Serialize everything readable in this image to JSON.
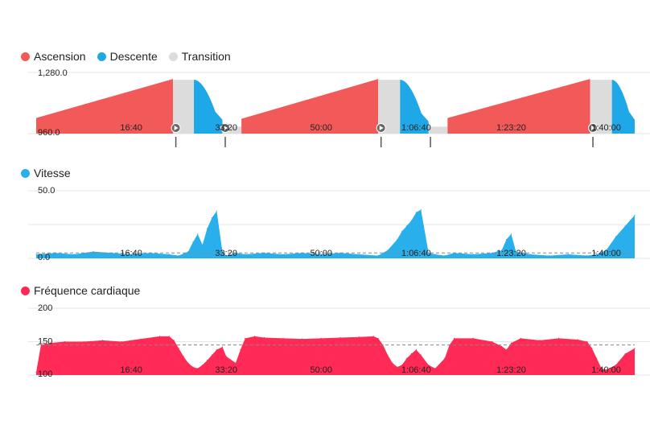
{
  "colors": {
    "ascent": "#f25a5a",
    "descent": "#1fa8e8",
    "transition": "#dcdcdc",
    "speed": "#29b0ec",
    "heart": "#ff2a55",
    "grid": "#e6e6e6",
    "reference": "#888888"
  },
  "chart_data": [
    {
      "type": "area",
      "legend": [
        {
          "name": "Ascension",
          "color": "#f25a5a"
        },
        {
          "name": "Descente",
          "color": "#1fa8e8"
        },
        {
          "name": "Transition",
          "color": "#dcdcdc"
        }
      ],
      "ylim": [
        960,
        1280
      ],
      "y_tick_labels": [
        "1,280.0",
        "960.0"
      ],
      "x_tick_labels": [
        "16:40",
        "33:20",
        "50:00",
        "1:06:40",
        "1:23:20",
        "1:40:00"
      ],
      "x_ticks_seconds": [
        1000,
        2000,
        3000,
        4000,
        5000,
        6000
      ],
      "xlim_seconds": [
        0,
        6300
      ],
      "segments": [
        {
          "kind": "ascent",
          "x": [
            0,
            1440
          ],
          "y": [
            1050,
            1275
          ]
        },
        {
          "kind": "transition",
          "x": [
            1440,
            1660
          ],
          "y": [
            1270,
            1270
          ]
        },
        {
          "kind": "descent",
          "x": [
            1660,
            1960
          ],
          "y": [
            1270,
            1040
          ]
        },
        {
          "kind": "transition",
          "x": [
            1960,
            2160
          ],
          "y": [
            1000,
            1000
          ]
        },
        {
          "kind": "ascent",
          "x": [
            2160,
            3600
          ],
          "y": [
            1045,
            1275
          ]
        },
        {
          "kind": "transition",
          "x": [
            3600,
            3830
          ],
          "y": [
            1270,
            1270
          ]
        },
        {
          "kind": "descent",
          "x": [
            3830,
            4130
          ],
          "y": [
            1270,
            1030
          ]
        },
        {
          "kind": "transition",
          "x": [
            4130,
            4330
          ],
          "y": [
            1000,
            1000
          ]
        },
        {
          "kind": "ascent",
          "x": [
            4330,
            5830
          ],
          "y": [
            1050,
            1275
          ]
        },
        {
          "kind": "transition",
          "x": [
            5830,
            6060
          ],
          "y": [
            1270,
            1270
          ]
        },
        {
          "kind": "descent",
          "x": [
            6060,
            6300
          ],
          "y": [
            1270,
            1040
          ]
        }
      ],
      "markers_seconds": [
        1470,
        1990,
        3630,
        4150,
        5860
      ]
    },
    {
      "type": "area",
      "legend": [
        {
          "name": "Vitesse",
          "color": "#29b0ec"
        }
      ],
      "ylim": [
        0,
        50
      ],
      "y_tick_labels": [
        "50.0",
        "0.0"
      ],
      "x_tick_labels": [
        "16:40",
        "33:20",
        "50:00",
        "1:06:40",
        "1:23:20",
        "1:40:00"
      ],
      "x_ticks_seconds": [
        1000,
        2000,
        3000,
        4000,
        5000,
        6000
      ],
      "xlim_seconds": [
        0,
        6300
      ],
      "reference_line": 4,
      "x": [
        0,
        200,
        400,
        600,
        800,
        1000,
        1200,
        1400,
        1500,
        1600,
        1650,
        1700,
        1750,
        1800,
        1850,
        1900,
        1960,
        2000,
        2100,
        2200,
        2400,
        2600,
        2800,
        3000,
        3200,
        3400,
        3600,
        3700,
        3800,
        3850,
        3900,
        3950,
        4000,
        4050,
        4130,
        4200,
        4300,
        4400,
        4600,
        4800,
        4900,
        4950,
        5000,
        5050,
        5200,
        5400,
        5600,
        5800,
        5900,
        6000,
        6100,
        6200,
        6300
      ],
      "y": [
        3,
        4,
        3,
        5,
        4,
        3,
        4,
        3,
        2,
        5,
        12,
        18,
        10,
        22,
        30,
        35,
        5,
        2,
        4,
        3,
        4,
        3,
        4,
        3,
        4,
        3,
        2,
        6,
        14,
        20,
        24,
        28,
        34,
        36,
        4,
        3,
        2,
        4,
        3,
        4,
        6,
        14,
        18,
        5,
        3,
        2,
        3,
        2,
        3,
        6,
        16,
        24,
        32
      ]
    },
    {
      "type": "area",
      "legend": [
        {
          "name": "Fréquence cardiaque",
          "color": "#ff2a55"
        }
      ],
      "ylim": [
        100,
        200
      ],
      "y_tick_labels": [
        "200",
        "150",
        "100"
      ],
      "x_tick_labels": [
        "16:40",
        "33:20",
        "50:00",
        "1:06:40",
        "1:23:20",
        "1:40:00"
      ],
      "x_ticks_seconds": [
        1000,
        2000,
        3000,
        4000,
        5000,
        6000
      ],
      "xlim_seconds": [
        0,
        6300
      ],
      "reference_line": 145,
      "x": [
        0,
        50,
        150,
        300,
        500,
        700,
        900,
        1100,
        1300,
        1400,
        1450,
        1500,
        1550,
        1600,
        1650,
        1700,
        1750,
        1800,
        1850,
        1900,
        1960,
        2000,
        2100,
        2150,
        2200,
        2300,
        2400,
        2600,
        2800,
        3000,
        3200,
        3400,
        3550,
        3600,
        3650,
        3700,
        3750,
        3800,
        3850,
        3900,
        3950,
        4000,
        4050,
        4130,
        4200,
        4300,
        4350,
        4400,
        4600,
        4800,
        4900,
        4950,
        5000,
        5100,
        5300,
        5500,
        5700,
        5800,
        5850,
        5900,
        5950,
        6000,
        6100,
        6200,
        6300
      ],
      "y": [
        104,
        145,
        148,
        150,
        150,
        152,
        150,
        154,
        158,
        158,
        152,
        140,
        128,
        118,
        112,
        110,
        115,
        122,
        130,
        138,
        142,
        128,
        118,
        138,
        155,
        158,
        156,
        155,
        154,
        155,
        156,
        157,
        158,
        155,
        145,
        130,
        118,
        112,
        115,
        125,
        132,
        138,
        130,
        115,
        110,
        125,
        145,
        155,
        155,
        150,
        143,
        138,
        148,
        155,
        152,
        155,
        153,
        150,
        140,
        125,
        110,
        108,
        115,
        132,
        140
      ]
    }
  ]
}
